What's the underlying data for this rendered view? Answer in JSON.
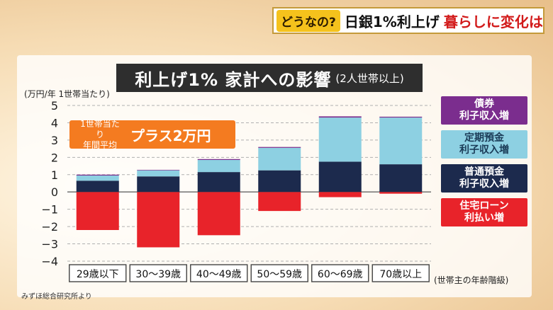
{
  "header": {
    "tag": "どうなの?",
    "title_part1": "日銀1%利上げ",
    "title_part2": "暮らしに変化は"
  },
  "callout": {
    "line1": "1世帯当たり",
    "line2": "年間平均",
    "value": "プラス2万円",
    "color": "#f47b20"
  },
  "source": "みずほ総合研究所より",
  "chart_data": {
    "type": "bar",
    "stacked": true,
    "title": "利上げ1% 家計への影響",
    "subtitle": "(2人世帯以上)",
    "ylabel": "(万円/年 1世帯当たり)",
    "xlabel": "(世帯主の年齢階級)",
    "ylim": [
      -4,
      5
    ],
    "yticks": [
      5,
      4,
      3,
      2,
      1,
      0,
      -1,
      -2,
      -3,
      -4
    ],
    "ytick_labels": [
      "5",
      "4",
      "3",
      "2",
      "1",
      "0",
      "−1",
      "−2",
      "−3",
      "−4"
    ],
    "grid": true,
    "legend_position": "right",
    "categories": [
      "29歳以下",
      "30〜39歳",
      "40〜49歳",
      "50〜59歳",
      "60〜69歳",
      "70歳以上"
    ],
    "series": [
      {
        "name": "住宅ローン 利払い増",
        "label_line1": "住宅ローン",
        "label_line2": "利払い増",
        "color": "#e8232a",
        "values": [
          -2.2,
          -3.2,
          -2.5,
          -1.1,
          -0.3,
          -0.1
        ]
      },
      {
        "name": "普通預金 利子収入増",
        "label_line1": "普通預金",
        "label_line2": "利子収入増",
        "color": "#1c2a4d",
        "values": [
          0.65,
          0.9,
          1.15,
          1.25,
          1.75,
          1.6
        ]
      },
      {
        "name": "定期預金 利子収入増",
        "label_line1": "定期預金",
        "label_line2": "利子収入増",
        "color": "#8dd0e2",
        "values": [
          0.3,
          0.35,
          0.7,
          1.3,
          2.55,
          2.7
        ]
      },
      {
        "name": "債券 利子収入増",
        "label_line1": "債券",
        "label_line2": "利子収入増",
        "color": "#7b2d8e",
        "values": [
          0.05,
          0.03,
          0.05,
          0.05,
          0.07,
          0.05
        ]
      }
    ]
  }
}
